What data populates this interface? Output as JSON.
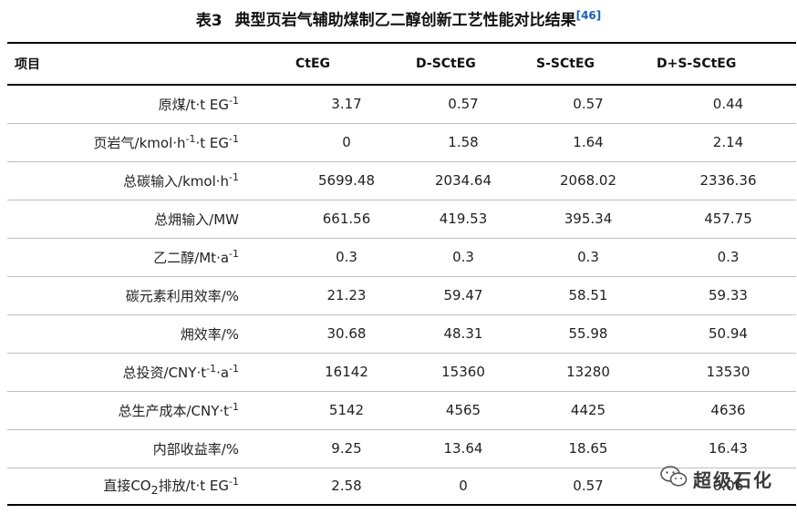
{
  "caption": {
    "label": "表3",
    "title": "典型页岩气辅助煤制乙二醇创新工艺性能对比结果",
    "ref": "[46]"
  },
  "table": {
    "headers": [
      "项目",
      "CtEG",
      "D-SCtEG",
      "S-SCtEG",
      "D+S-SCtEG"
    ],
    "rows": [
      {
        "label": "原煤/t·t EG",
        "sup": "-1",
        "values": [
          "3.17",
          "0.57",
          "0.57",
          "0.44"
        ]
      },
      {
        "label": "页岩气/kmol·h",
        "sup": "-1",
        "label2": "·t EG",
        "sup2": "-1",
        "values": [
          "0",
          "1.58",
          "1.64",
          "2.14"
        ]
      },
      {
        "label": "总碳输入/kmol·h",
        "sup": "-1",
        "values": [
          "5699.48",
          "2034.64",
          "2068.02",
          "2336.36"
        ]
      },
      {
        "label": "总㶲输入/MW",
        "values": [
          "661.56",
          "419.53",
          "395.34",
          "457.75"
        ]
      },
      {
        "label": "乙二醇/Mt·a",
        "sup": "-1",
        "values": [
          "0.3",
          "0.3",
          "0.3",
          "0.3"
        ]
      },
      {
        "label": "碳元素利用效率/%",
        "values": [
          "21.23",
          "59.47",
          "58.51",
          "59.33"
        ]
      },
      {
        "label": "㶲效率/%",
        "values": [
          "30.68",
          "48.31",
          "55.98",
          "50.94"
        ]
      },
      {
        "label": "总投资/CNY·t",
        "sup": "-1",
        "label2": "·a",
        "sup2": "-1",
        "values": [
          "16142",
          "15360",
          "13280",
          "13530"
        ]
      },
      {
        "label": "总生产成本/CNY·t",
        "sup": "-1",
        "values": [
          "5142",
          "4565",
          "4425",
          "4636"
        ]
      },
      {
        "label": "内部收益率/%",
        "values": [
          "9.25",
          "13.64",
          "18.65",
          "16.43"
        ]
      },
      {
        "label": "直接CO",
        "sub": "2",
        "label2": "排放/t·t EG",
        "sup2": "-1",
        "values": [
          "2.58",
          "0",
          "0.57",
          "0.06"
        ]
      }
    ]
  },
  "watermark": {
    "text": "超级石化",
    "icon": "wechat-icon"
  }
}
